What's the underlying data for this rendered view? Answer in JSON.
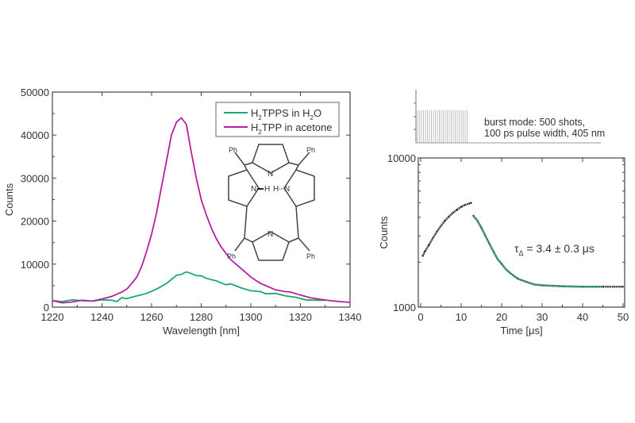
{
  "chart_data": [
    {
      "type": "line",
      "xlabel": "Wavelength [nm]",
      "ylabel": "Counts",
      "xlim": [
        1220,
        1340
      ],
      "ylim": [
        0,
        50000
      ],
      "xticks": [
        "1220",
        "1240",
        "1260",
        "1280",
        "1300",
        "1320",
        "1340"
      ],
      "yticks": [
        "0",
        "10000",
        "20000",
        "30000",
        "40000",
        "50000"
      ],
      "legend_placement": "top-right",
      "grid": false,
      "series": [
        {
          "name": "H2TPPS in H2O",
          "legend_main": [
            "H",
            "TPPS in H",
            "O"
          ],
          "legend_sub": [
            "2",
            "2"
          ],
          "color": "#1aab6a",
          "x": [
            1220,
            1224,
            1228,
            1232,
            1236,
            1240,
            1244,
            1246,
            1248,
            1250,
            1254,
            1258,
            1262,
            1266,
            1270,
            1272,
            1274,
            1276,
            1278,
            1280,
            1282,
            1286,
            1290,
            1292,
            1296,
            1300,
            1304,
            1306,
            1310,
            1314,
            1318,
            1322,
            1326,
            1330
          ],
          "y": [
            1500,
            1300,
            1700,
            1500,
            1400,
            1700,
            1600,
            1300,
            2200,
            2000,
            2600,
            3200,
            4200,
            5500,
            7400,
            7600,
            8200,
            7800,
            7300,
            7300,
            6700,
            6100,
            5200,
            5400,
            4500,
            3800,
            3600,
            3100,
            3200,
            2600,
            2300,
            1700,
            1600,
            1600
          ]
        },
        {
          "name": "H2TPP in acetone",
          "legend_main": [
            "H",
            "TPP in acetone"
          ],
          "legend_sub": [
            "2"
          ],
          "color": "#b5209f",
          "x": [
            1220,
            1224,
            1228,
            1232,
            1236,
            1240,
            1244,
            1248,
            1250,
            1252,
            1254,
            1256,
            1258,
            1260,
            1262,
            1264,
            1266,
            1268,
            1270,
            1272,
            1274,
            1276,
            1278,
            1280,
            1282,
            1284,
            1286,
            1288,
            1290,
            1292,
            1294,
            1296,
            1298,
            1300,
            1302,
            1304,
            1306,
            1308,
            1310,
            1314,
            1316,
            1320,
            1324,
            1328,
            1332,
            1336,
            1340
          ],
          "y": [
            1500,
            1000,
            1200,
            1600,
            1400,
            1900,
            2500,
            3500,
            4200,
            5500,
            7000,
            9500,
            13000,
            17000,
            22000,
            28000,
            34000,
            40000,
            43000,
            44000,
            42500,
            36000,
            30000,
            25000,
            21500,
            18500,
            16000,
            14000,
            12500,
            11000,
            10000,
            9000,
            8000,
            7000,
            6200,
            5500,
            5000,
            4500,
            4000,
            3600,
            3500,
            2800,
            2200,
            1800,
            1500,
            1300,
            1100
          ]
        }
      ],
      "inset": {
        "labels": {
          "ph": "Ph",
          "n": "N",
          "nh_left": "N",
          "h_left": "H",
          "h_right": "H",
          "nh_right": "N"
        }
      }
    },
    {
      "type": "scatter",
      "xlabel": "Time [μs]",
      "ylabel": "Counts",
      "xlim": [
        0,
        50
      ],
      "ylim": [
        1000,
        10000
      ],
      "yscale": "log",
      "xticks": [
        "0",
        "10",
        "20",
        "30",
        "40",
        "50"
      ],
      "yticks": [
        "1000",
        "10000"
      ],
      "annotation": {
        "tau": "τ",
        "sub": "Δ",
        "rest": " = 3.4 ± 0.3 μs"
      },
      "data": {
        "x": [
          0.5,
          1,
          2,
          3,
          4,
          5,
          6,
          7,
          8,
          9,
          10,
          11,
          12,
          12.5,
          13,
          14,
          15,
          16,
          17,
          18,
          19,
          20,
          21,
          22,
          24,
          26,
          28,
          30,
          35,
          40,
          45,
          50
        ],
        "y": [
          2200,
          2350,
          2600,
          2900,
          3200,
          3500,
          3800,
          4050,
          4300,
          4500,
          4700,
          4850,
          4950,
          5000,
          4100,
          3800,
          3400,
          3000,
          2650,
          2350,
          2100,
          1950,
          1800,
          1700,
          1550,
          1480,
          1420,
          1400,
          1380,
          1370,
          1370,
          1370
        ],
        "color": "#222222"
      },
      "fit": {
        "x": [
          13,
          14,
          15,
          16,
          17,
          18,
          19,
          20,
          21,
          22,
          24,
          26,
          28,
          30,
          35,
          40,
          45
        ],
        "y": [
          4100,
          3800,
          3400,
          3000,
          2650,
          2350,
          2100,
          1950,
          1800,
          1700,
          1550,
          1480,
          1420,
          1400,
          1380,
          1370,
          1370
        ],
        "color": "#1aab6a"
      },
      "burst_panel": {
        "text_line1": "burst mode: 500 shots,",
        "text_line2": "100 ps pulse width, 405 nm",
        "burst_end_us": 12.5,
        "color": "#999999"
      }
    }
  ]
}
